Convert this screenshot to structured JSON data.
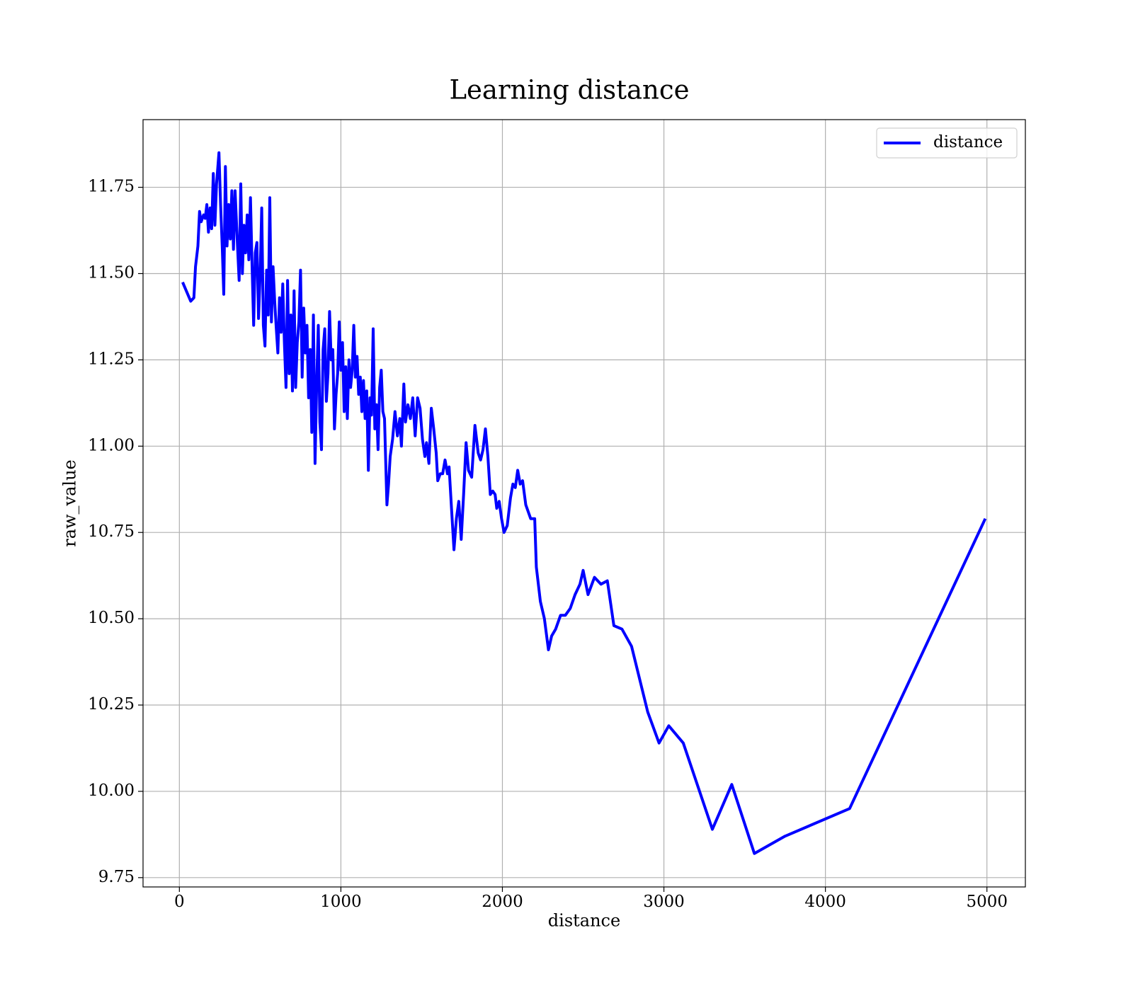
{
  "chart_data": {
    "type": "line",
    "title": "Learning distance",
    "x_label": "distance",
    "y_label": "raw_value",
    "xlim": [
      -225,
      5238
    ],
    "ylim": [
      9.723,
      11.946
    ],
    "xticks": [
      0,
      1000,
      2000,
      3000,
      4000,
      5000
    ],
    "yticks": [
      9.75,
      {
        "value": 10.0,
        "label": "10.00"
      },
      10.25,
      {
        "value": 10.5,
        "label": "10.50"
      },
      10.75,
      {
        "value": 11.0,
        "label": "11.00"
      },
      11.25,
      {
        "value": 11.5,
        "label": "11.50"
      },
      11.75
    ],
    "grid": true,
    "legend": "upper right",
    "x": [
      20,
      70,
      90,
      100,
      115,
      125,
      135,
      150,
      160,
      170,
      180,
      190,
      200,
      210,
      220,
      230,
      245,
      255,
      265,
      275,
      285,
      295,
      305,
      315,
      325,
      335,
      345,
      360,
      370,
      380,
      390,
      400,
      410,
      420,
      430,
      440,
      450,
      460,
      470,
      480,
      490,
      500,
      510,
      520,
      530,
      540,
      550,
      560,
      570,
      580,
      590,
      600,
      610,
      620,
      630,
      640,
      650,
      660,
      670,
      680,
      690,
      700,
      710,
      720,
      730,
      740,
      750,
      760,
      770,
      780,
      790,
      800,
      810,
      820,
      830,
      840,
      850,
      860,
      870,
      880,
      890,
      900,
      910,
      920,
      930,
      940,
      950,
      960,
      970,
      980,
      990,
      1000,
      1010,
      1020,
      1030,
      1040,
      1050,
      1060,
      1070,
      1080,
      1090,
      1100,
      1110,
      1120,
      1130,
      1140,
      1150,
      1160,
      1170,
      1180,
      1190,
      1200,
      1210,
      1220,
      1230,
      1240,
      1250,
      1260,
      1270,
      1285,
      1295,
      1305,
      1320,
      1335,
      1350,
      1365,
      1375,
      1390,
      1400,
      1415,
      1430,
      1445,
      1460,
      1475,
      1490,
      1505,
      1520,
      1530,
      1545,
      1560,
      1575,
      1590,
      1600,
      1615,
      1630,
      1645,
      1660,
      1670,
      1685,
      1700,
      1715,
      1730,
      1745,
      1760,
      1775,
      1790,
      1810,
      1830,
      1850,
      1865,
      1880,
      1895,
      1910,
      1925,
      1940,
      1955,
      1965,
      1980,
      1995,
      2010,
      2030,
      2050,
      2065,
      2080,
      2095,
      2110,
      2125,
      2145,
      2175,
      2200,
      2210,
      2235,
      2260,
      2285,
      2305,
      2330,
      2360,
      2390,
      2420,
      2450,
      2480,
      2500,
      2530,
      2570,
      2610,
      2650,
      2690,
      2740,
      2800,
      2900,
      2970,
      3030,
      3120,
      3300,
      3420,
      3560,
      3750,
      4150,
      4990
    ],
    "series": [
      {
        "name": "distance",
        "color": "#0000ff",
        "values": [
          11.475,
          11.42,
          11.43,
          11.52,
          11.58,
          11.68,
          11.65,
          11.67,
          11.66,
          11.7,
          11.62,
          11.69,
          11.63,
          11.79,
          11.64,
          11.76,
          11.85,
          11.7,
          11.58,
          11.44,
          11.81,
          11.58,
          11.7,
          11.6,
          11.74,
          11.57,
          11.74,
          11.58,
          11.48,
          11.76,
          11.5,
          11.64,
          11.56,
          11.67,
          11.54,
          11.72,
          11.52,
          11.35,
          11.56,
          11.59,
          11.37,
          11.5,
          11.69,
          11.35,
          11.29,
          11.51,
          11.38,
          11.72,
          11.36,
          11.52,
          11.42,
          11.34,
          11.27,
          11.43,
          11.33,
          11.47,
          11.3,
          11.17,
          11.48,
          11.21,
          11.38,
          11.16,
          11.45,
          11.17,
          11.3,
          11.36,
          11.51,
          11.2,
          11.4,
          11.27,
          11.35,
          11.14,
          11.28,
          11.04,
          11.38,
          10.95,
          11.18,
          11.35,
          11.07,
          10.99,
          11.28,
          11.34,
          11.13,
          11.21,
          11.39,
          11.25,
          11.28,
          11.05,
          11.15,
          11.21,
          11.36,
          11.22,
          11.3,
          11.1,
          11.23,
          11.08,
          11.25,
          11.17,
          11.22,
          11.35,
          11.2,
          11.26,
          11.15,
          11.2,
          11.1,
          11.19,
          11.08,
          11.16,
          10.93,
          11.14,
          11.09,
          11.34,
          11.05,
          11.12,
          10.99,
          11.17,
          11.22,
          11.1,
          11.08,
          10.83,
          10.89,
          10.97,
          11.02,
          11.1,
          11.03,
          11.08,
          11.0,
          11.18,
          11.07,
          11.12,
          11.08,
          11.14,
          11.03,
          11.14,
          11.11,
          11.02,
          10.97,
          11.01,
          10.95,
          11.11,
          11.05,
          10.98,
          10.9,
          10.92,
          10.92,
          10.96,
          10.92,
          10.94,
          10.82,
          10.7,
          10.79,
          10.84,
          10.73,
          10.86,
          11.01,
          10.93,
          10.91,
          11.06,
          10.98,
          10.96,
          10.99,
          11.05,
          10.97,
          10.86,
          10.87,
          10.86,
          10.82,
          10.84,
          10.79,
          10.75,
          10.77,
          10.85,
          10.89,
          10.88,
          10.93,
          10.89,
          10.9,
          10.83,
          10.79,
          10.79,
          10.65,
          10.55,
          10.5,
          10.41,
          10.45,
          10.47,
          10.51,
          10.51,
          10.53,
          10.57,
          10.6,
          10.64,
          10.57,
          10.62,
          10.6,
          10.61,
          10.48,
          10.47,
          10.42,
          10.23,
          10.14,
          10.19,
          10.14,
          9.89,
          10.02,
          9.82,
          9.87,
          9.95,
          10.79
        ]
      }
    ]
  }
}
